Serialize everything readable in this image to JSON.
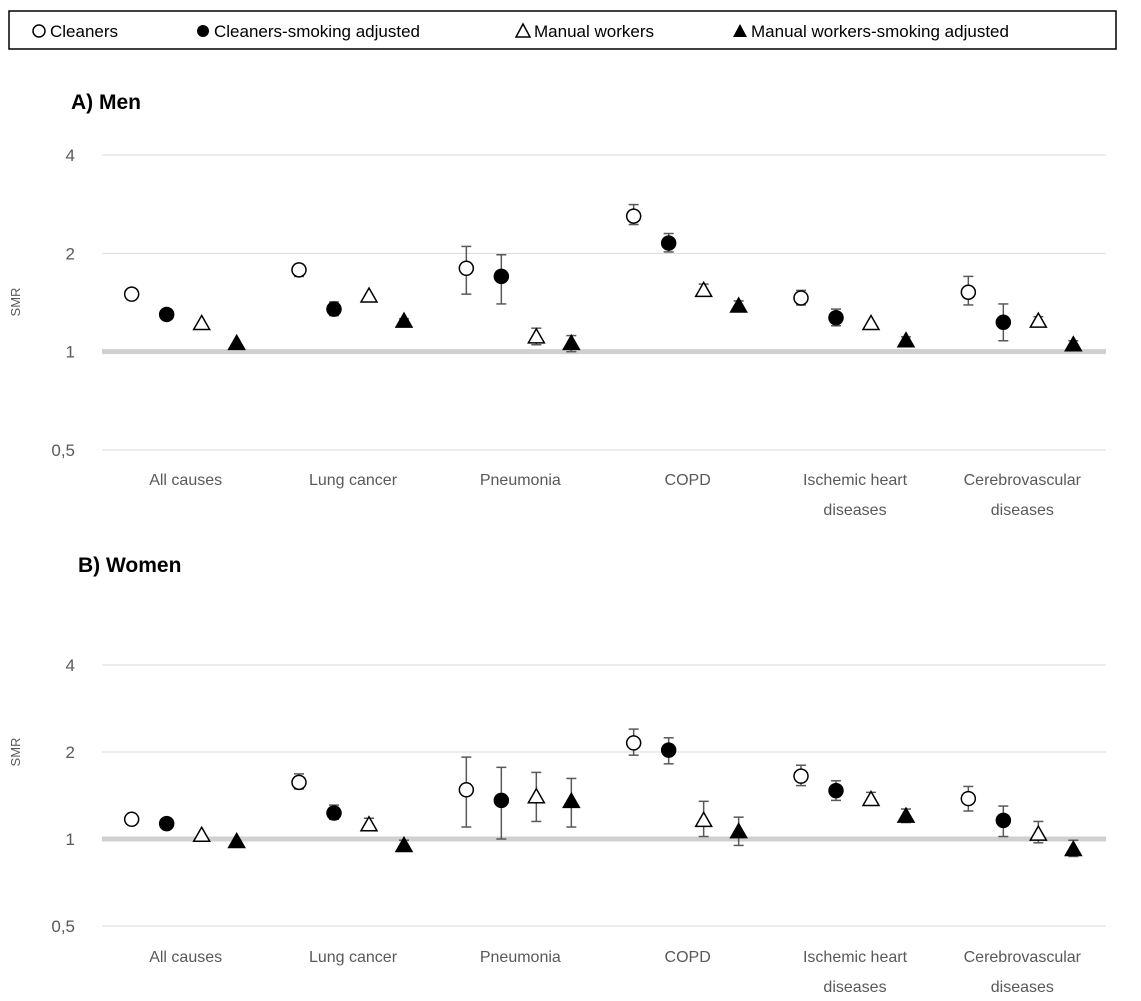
{
  "legend": [
    {
      "label": "Cleaners",
      "marker": "circle-open"
    },
    {
      "label": "Cleaners-smoking adjusted",
      "marker": "circle-filled"
    },
    {
      "label": "Manual workers",
      "marker": "triangle-open"
    },
    {
      "label": "Manual workers-smoking adjusted",
      "marker": "triangle-filled"
    }
  ],
  "colors": {
    "marker": "#000000",
    "errorbar": "#595959",
    "gridline": "#d9d9d9",
    "reference_line": "#d0d0d0"
  },
  "chart_data": [
    {
      "type": "scatter",
      "title": "A) Men",
      "ylabel": "SMR",
      "yscale": "log",
      "ylim": [
        0.5,
        4
      ],
      "yticks": [
        "4",
        "2",
        "1",
        "0,5"
      ],
      "yticks_values": [
        4,
        2,
        1,
        0.5
      ],
      "reference_line": 1,
      "categories": [
        "All causes",
        "Lung cancer",
        "Pneumonia",
        "COPD",
        "Ischemic heart diseases",
        "Cerebrovascular diseases"
      ],
      "category_labels": [
        [
          "All causes"
        ],
        [
          "Lung cancer"
        ],
        [
          "Pneumonia"
        ],
        [
          "COPD"
        ],
        [
          "Ischemic heart",
          "diseases"
        ],
        [
          "Cerebrovascular",
          "diseases"
        ]
      ],
      "series": [
        {
          "name": "Cleaners",
          "values": [
            1.5,
            1.78,
            1.8,
            2.6,
            1.46,
            1.52
          ],
          "lower": [
            null,
            1.7,
            1.5,
            2.45,
            1.39,
            1.39
          ],
          "upper": [
            null,
            1.85,
            2.1,
            2.82,
            1.54,
            1.7
          ]
        },
        {
          "name": "Cleaners-smoking adjusted",
          "values": [
            1.3,
            1.35,
            1.7,
            2.15,
            1.27,
            1.23
          ],
          "lower": [
            null,
            1.29,
            1.4,
            2.02,
            1.2,
            1.08
          ],
          "upper": [
            null,
            1.42,
            1.98,
            2.3,
            1.35,
            1.4
          ]
        },
        {
          "name": "Manual workers",
          "values": [
            1.22,
            1.48,
            1.11,
            1.54,
            1.22,
            1.24
          ],
          "lower": [
            null,
            null,
            1.05,
            1.49,
            null,
            1.2
          ],
          "upper": [
            null,
            null,
            1.18,
            1.61,
            null,
            1.28
          ]
        },
        {
          "name": "Manual workers-smoking adjusted",
          "values": [
            1.06,
            1.24,
            1.06,
            1.38,
            1.08,
            1.05
          ],
          "lower": [
            null,
            1.22,
            1.0,
            1.34,
            1.06,
            1.02
          ],
          "upper": [
            null,
            1.26,
            1.12,
            1.43,
            1.11,
            1.08
          ]
        }
      ]
    },
    {
      "type": "scatter",
      "title": "B) Women",
      "ylabel": "SMR",
      "yscale": "log",
      "ylim": [
        0.5,
        4
      ],
      "yticks": [
        "4",
        "2",
        "1",
        "0,5"
      ],
      "yticks_values": [
        4,
        2,
        1,
        0.5
      ],
      "reference_line": 1,
      "categories": [
        "All causes",
        "Lung cancer",
        "Pneumonia",
        "COPD",
        "Ischemic heart diseases",
        "Cerebrovascular diseases"
      ],
      "category_labels": [
        [
          "All causes"
        ],
        [
          "Lung cancer"
        ],
        [
          "Pneumonia"
        ],
        [
          "COPD"
        ],
        [
          "Ischemic heart",
          "diseases"
        ],
        [
          "Cerebrovascular",
          "diseases"
        ]
      ],
      "series": [
        {
          "name": "Cleaners",
          "values": [
            1.17,
            1.57,
            1.48,
            2.15,
            1.65,
            1.38
          ],
          "lower": [
            null,
            1.49,
            1.1,
            1.95,
            1.53,
            1.25
          ],
          "upper": [
            null,
            1.68,
            1.92,
            2.4,
            1.8,
            1.52
          ]
        },
        {
          "name": "Cleaners-smoking adjusted",
          "values": [
            1.13,
            1.23,
            1.36,
            2.03,
            1.47,
            1.16
          ],
          "lower": [
            null,
            1.17,
            1.0,
            1.82,
            1.36,
            1.02
          ],
          "upper": [
            null,
            1.31,
            1.77,
            2.24,
            1.59,
            1.3
          ]
        },
        {
          "name": "Manual workers",
          "values": [
            1.03,
            1.12,
            1.4,
            1.16,
            1.37,
            1.04
          ],
          "lower": [
            null,
            1.07,
            1.15,
            1.02,
            1.31,
            0.97
          ],
          "upper": [
            null,
            1.18,
            1.7,
            1.35,
            1.45,
            1.15
          ]
        },
        {
          "name": "Manual workers-smoking adjusted",
          "values": [
            0.98,
            0.95,
            1.35,
            1.06,
            1.2,
            0.92
          ],
          "lower": [
            null,
            0.93,
            1.1,
            0.95,
            1.14,
            0.87
          ],
          "upper": [
            null,
            0.99,
            1.62,
            1.19,
            1.27,
            0.99
          ]
        }
      ]
    }
  ]
}
